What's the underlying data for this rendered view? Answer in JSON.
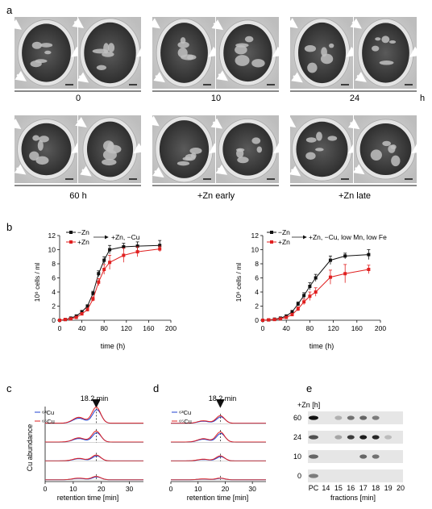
{
  "panel_a": {
    "label": "a",
    "hours_unit": "h",
    "top_row": [
      "0",
      "10",
      "24"
    ],
    "bottom_row": [
      "60 h",
      "+Zn early",
      "+Zn late"
    ]
  },
  "panel_b": {
    "label": "b",
    "left_legend": {
      "minus_zn": "−Zn",
      "plus_zn": "+Zn",
      "arrow_text": "+Zn, −Cu"
    },
    "right_legend": {
      "minus_zn": "−Zn",
      "plus_zn": "+Zn",
      "arrow_text": "+Zn, −Cu, low Mn, low Fe"
    },
    "ylabel": "10⁶ cells / ml",
    "xlabel": "time (h)"
  },
  "panel_c": {
    "label": "c",
    "peak_label": "18.2 min",
    "legend": [
      "⁶³Cu",
      "⁶⁵Cu"
    ],
    "ylabel": "Cu abundance",
    "xlabel": "retention time [min]"
  },
  "panel_d": {
    "label": "d",
    "peak_label": "18.2 min",
    "legend": [
      "⁶³Cu",
      "⁶⁵Cu"
    ],
    "xlabel": "retention time [min]"
  },
  "panel_e": {
    "label": "e",
    "zn_header": "+Zn [h]",
    "rows": [
      "60",
      "24",
      "10",
      "0"
    ],
    "columns": [
      "PC",
      "14",
      "15",
      "16",
      "17",
      "18",
      "19",
      "20"
    ],
    "xlabel": "fractions [min]"
  },
  "chart_data": [
    {
      "type": "line",
      "panel": "b-left",
      "x": [
        0,
        10,
        20,
        30,
        40,
        50,
        60,
        70,
        80,
        90,
        115,
        140,
        180
      ],
      "series": [
        {
          "name": "−Zn",
          "values": [
            0,
            0.1,
            0.3,
            0.6,
            1.2,
            2.0,
            3.8,
            6.6,
            8.5,
            10.0,
            10.4,
            10.5,
            10.6
          ],
          "err": [
            0,
            0.1,
            0.1,
            0.1,
            0.2,
            0.2,
            0.3,
            0.4,
            0.5,
            0.6,
            0.5,
            0.6,
            0.7
          ],
          "color": "#111111"
        },
        {
          "name": "+Zn",
          "values": [
            0,
            0.1,
            0.2,
            0.4,
            0.9,
            1.5,
            3.0,
            5.4,
            7.2,
            8.2,
            9.2,
            9.7,
            10.1
          ],
          "err": [
            0,
            0.1,
            0.1,
            0.1,
            0.2,
            0.2,
            0.3,
            0.5,
            0.7,
            1.0,
            1.0,
            0.7,
            0.4
          ],
          "color": "#e02020"
        }
      ],
      "xticks": [
        0,
        40,
        80,
        120,
        160,
        200
      ],
      "yticks": [
        0,
        2,
        4,
        6,
        8,
        10,
        12
      ],
      "xlim": [
        0,
        200
      ],
      "ylim": [
        0,
        12
      ],
      "xlabel": "time (h)",
      "ylabel": "10⁶ cells / ml"
    },
    {
      "type": "line",
      "panel": "b-right",
      "x": [
        0,
        10,
        20,
        30,
        40,
        50,
        60,
        70,
        80,
        90,
        115,
        140,
        180
      ],
      "series": [
        {
          "name": "−Zn",
          "values": [
            0,
            0.05,
            0.15,
            0.3,
            0.6,
            1.2,
            2.3,
            3.5,
            4.8,
            6.0,
            8.5,
            9.1,
            9.3
          ],
          "err": [
            0,
            0.1,
            0.1,
            0.1,
            0.1,
            0.2,
            0.3,
            0.4,
            0.5,
            0.5,
            0.6,
            0.4,
            0.7
          ],
          "color": "#111111"
        },
        {
          "name": "+Zn",
          "values": [
            0,
            0.05,
            0.1,
            0.2,
            0.4,
            0.8,
            1.6,
            2.6,
            3.4,
            4.0,
            6.1,
            6.6,
            7.2
          ],
          "err": [
            0,
            0.1,
            0.1,
            0.1,
            0.1,
            0.2,
            0.3,
            0.4,
            0.6,
            0.6,
            1.0,
            1.3,
            0.6
          ],
          "color": "#e02020"
        }
      ],
      "xticks": [
        0,
        40,
        80,
        120,
        160,
        200
      ],
      "yticks": [
        0,
        2,
        4,
        6,
        8,
        10,
        12
      ],
      "xlim": [
        0,
        200
      ],
      "ylim": [
        0,
        12
      ],
      "xlabel": "time (h)",
      "ylabel": "10⁶ cells / ml"
    },
    {
      "type": "line",
      "panel": "c",
      "xlim": [
        0,
        35
      ],
      "xticks": [
        0,
        10,
        20,
        30
      ],
      "peak_x": 18.2,
      "traces": [
        {
          "peak": 0.95,
          "base": 0.1,
          "shoulder": 0.35
        },
        {
          "peak": 0.65,
          "base": 0.08,
          "shoulder": 0.25
        },
        {
          "peak": 0.35,
          "base": 0.06,
          "shoulder": 0.15
        },
        {
          "peak": 0.2,
          "base": 0.04,
          "shoulder": 0.1
        }
      ],
      "series_colors": {
        "Cu63": "#2040d0",
        "Cu65": "#e02020"
      },
      "xlabel": "retention time [min]",
      "ylabel": "Cu abundance"
    },
    {
      "type": "line",
      "panel": "d",
      "xlim": [
        0,
        35
      ],
      "xticks": [
        0,
        10,
        20,
        30
      ],
      "peak_x": 18.2,
      "traces": [
        {
          "peak": 0.45,
          "base": 0.08,
          "shoulder": 0.15
        },
        {
          "peak": 0.6,
          "base": 0.08,
          "shoulder": 0.2
        },
        {
          "peak": 0.3,
          "base": 0.06,
          "shoulder": 0.1
        },
        {
          "peak": 0.1,
          "base": 0.04,
          "shoulder": 0.05
        }
      ],
      "series_colors": {
        "Cu63": "#2040d0",
        "Cu65": "#e02020"
      },
      "xlabel": "retention time [min]"
    }
  ]
}
